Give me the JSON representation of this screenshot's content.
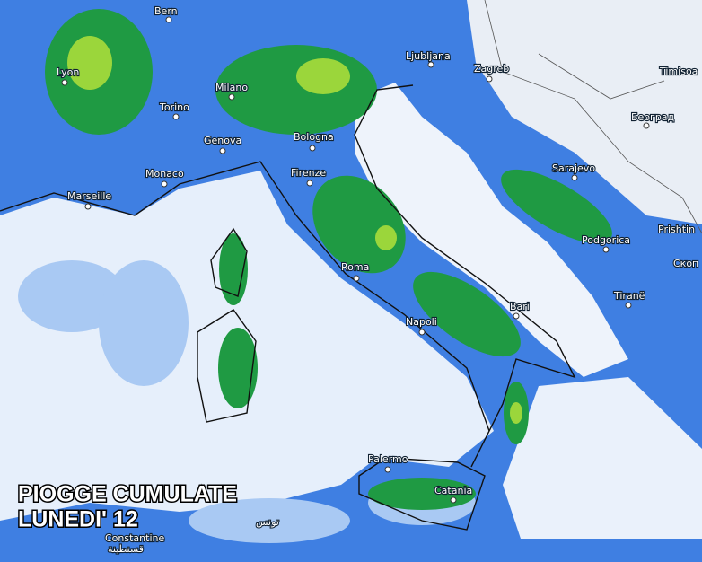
{
  "title": [
    "PIOGGE CUMULATE",
    "LUNEDI' 12"
  ],
  "cities": [
    "Bern",
    "Lyon",
    "Milano",
    "Torino",
    "Genova",
    "Bologna",
    "Monaco",
    "Marseille",
    "Firenze",
    "Roma",
    "Napoli",
    "Bari",
    "Palermo",
    "Catania",
    "Ljubljana",
    "Zagreb",
    "Timisoa",
    "Београд",
    "Sarajevo",
    "Podgorica",
    "Prishtin",
    "Скоп",
    "Tiranë",
    "Constantine",
    "تونس",
    "قسنطينة"
  ]
}
